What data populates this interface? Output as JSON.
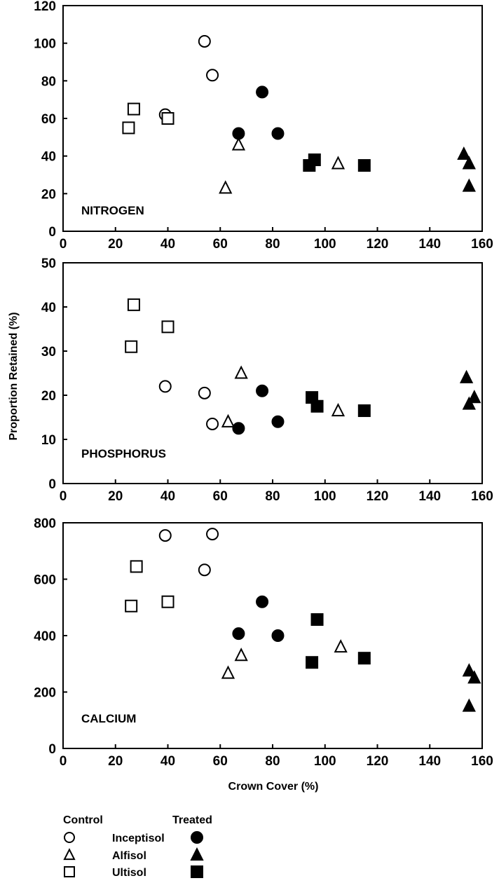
{
  "chart_data": [
    {
      "type": "scatter",
      "title": "",
      "annotation": "NITROGEN",
      "xlabel": "",
      "ylabel": "",
      "xlim": [
        0,
        160
      ],
      "ylim": [
        0,
        120
      ],
      "xticks": [
        0,
        20,
        40,
        60,
        80,
        100,
        120,
        140,
        160
      ],
      "yticks": [
        0,
        20,
        40,
        60,
        80,
        100,
        120
      ],
      "grid": false,
      "series": [
        {
          "name": "Control Inceptisol",
          "marker": "circle",
          "filled": false,
          "x": [
            39,
            54,
            57
          ],
          "y": [
            62,
            101,
            83
          ]
        },
        {
          "name": "Control Alfisol",
          "marker": "triangle",
          "filled": false,
          "x": [
            62,
            67,
            105
          ],
          "y": [
            23,
            46,
            36
          ]
        },
        {
          "name": "Control Ultisol",
          "marker": "square",
          "filled": false,
          "x": [
            25,
            27,
            40
          ],
          "y": [
            55,
            65,
            60
          ]
        },
        {
          "name": "Treated Inceptisol",
          "marker": "circle",
          "filled": true,
          "x": [
            67,
            76,
            82
          ],
          "y": [
            52,
            74,
            52
          ]
        },
        {
          "name": "Treated Alfisol",
          "marker": "triangle",
          "filled": true,
          "x": [
            153,
            155,
            155
          ],
          "y": [
            41,
            36,
            24
          ]
        },
        {
          "name": "Treated Ultisol",
          "marker": "square",
          "filled": true,
          "x": [
            94,
            96,
            115
          ],
          "y": [
            35,
            38,
            35
          ]
        }
      ]
    },
    {
      "type": "scatter",
      "title": "",
      "annotation": "PHOSPHORUS",
      "xlabel": "",
      "ylabel": "Proportion Retained (%)",
      "xlim": [
        0,
        160
      ],
      "ylim": [
        0,
        50
      ],
      "xticks": [
        0,
        20,
        40,
        60,
        80,
        100,
        120,
        140,
        160
      ],
      "yticks": [
        0,
        10,
        20,
        30,
        40,
        50
      ],
      "grid": false,
      "series": [
        {
          "name": "Control Inceptisol",
          "marker": "circle",
          "filled": false,
          "x": [
            39,
            54,
            57
          ],
          "y": [
            22,
            20.5,
            13.5
          ]
        },
        {
          "name": "Control Alfisol",
          "marker": "triangle",
          "filled": false,
          "x": [
            63,
            68,
            105
          ],
          "y": [
            14,
            25,
            16.5
          ]
        },
        {
          "name": "Control Ultisol",
          "marker": "square",
          "filled": false,
          "x": [
            26,
            27,
            40
          ],
          "y": [
            31,
            40.5,
            35.5
          ]
        },
        {
          "name": "Treated Inceptisol",
          "marker": "circle",
          "filled": true,
          "x": [
            67,
            76,
            82
          ],
          "y": [
            12.5,
            21,
            14
          ]
        },
        {
          "name": "Treated Alfisol",
          "marker": "triangle",
          "filled": true,
          "x": [
            154,
            155,
            157
          ],
          "y": [
            24,
            18,
            19.5
          ]
        },
        {
          "name": "Treated Ultisol",
          "marker": "square",
          "filled": true,
          "x": [
            95,
            97,
            115
          ],
          "y": [
            19.5,
            17.5,
            16.5
          ]
        }
      ]
    },
    {
      "type": "scatter",
      "title": "",
      "annotation": "CALCIUM",
      "xlabel": "Crown Cover (%)",
      "ylabel": "",
      "xlim": [
        0,
        160
      ],
      "ylim": [
        0,
        800
      ],
      "xticks": [
        0,
        20,
        40,
        60,
        80,
        100,
        120,
        140,
        160
      ],
      "yticks": [
        0,
        200,
        400,
        600,
        800
      ],
      "grid": false,
      "series": [
        {
          "name": "Control Inceptisol",
          "marker": "circle",
          "filled": false,
          "x": [
            39,
            54,
            57
          ],
          "y": [
            755,
            633,
            760
          ]
        },
        {
          "name": "Control Alfisol",
          "marker": "triangle",
          "filled": false,
          "x": [
            63,
            68,
            106
          ],
          "y": [
            267,
            330,
            360
          ]
        },
        {
          "name": "Control Ultisol",
          "marker": "square",
          "filled": false,
          "x": [
            26,
            28,
            40
          ],
          "y": [
            505,
            645,
            520
          ]
        },
        {
          "name": "Treated Inceptisol",
          "marker": "circle",
          "filled": true,
          "x": [
            67,
            76,
            82
          ],
          "y": [
            407,
            520,
            400
          ]
        },
        {
          "name": "Treated Alfisol",
          "marker": "triangle",
          "filled": true,
          "x": [
            155,
            155,
            157
          ],
          "y": [
            150,
            275,
            250
          ]
        },
        {
          "name": "Treated Ultisol",
          "marker": "square",
          "filled": true,
          "x": [
            95,
            97,
            115
          ],
          "y": [
            305,
            457,
            320
          ]
        }
      ]
    }
  ],
  "legend": {
    "control_header": "Control",
    "treated_header": "Treated",
    "rows": [
      {
        "label": "Inceptisol",
        "marker": "circle"
      },
      {
        "label": "Alfisol",
        "marker": "triangle"
      },
      {
        "label": "Ultisol",
        "marker": "square"
      }
    ]
  }
}
